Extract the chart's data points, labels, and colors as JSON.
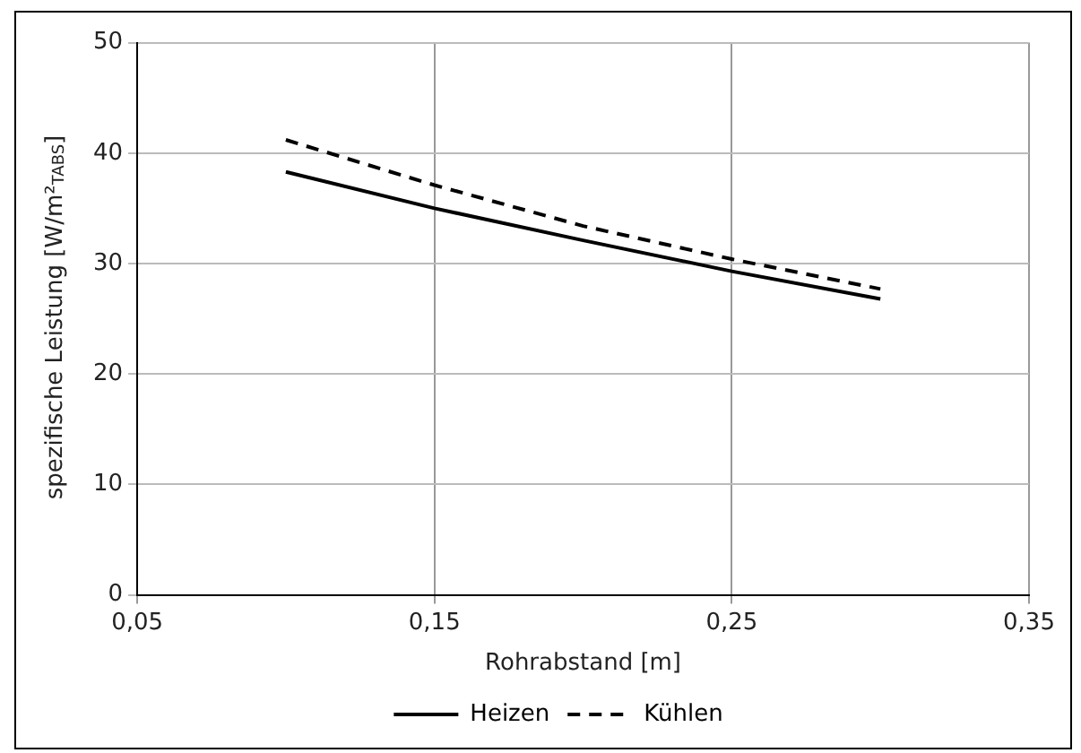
{
  "chart_data": {
    "type": "line",
    "xlabel": "Rohrabstand [m]",
    "ylabel": "spezifische Leistung [W/m²$_{TABS}$]",
    "x": [
      0.1,
      0.15,
      0.2,
      0.25,
      0.3
    ],
    "series": [
      {
        "name": "Heizen",
        "color": "#000000",
        "line_style": "solid",
        "values": [
          38.3,
          35.0,
          32.1,
          29.3,
          26.8
        ]
      },
      {
        "name": "Kühlen",
        "color": "#000000",
        "line_style": "dashed",
        "values": [
          41.2,
          37.1,
          33.4,
          30.4,
          27.7
        ]
      }
    ],
    "xlim": [
      0.05,
      0.35
    ],
    "xticks": [
      {
        "value": 0.05,
        "label": "0,05"
      },
      {
        "value": 0.15,
        "label": "0,15"
      },
      {
        "value": 0.25,
        "label": "0,25"
      },
      {
        "value": 0.35,
        "label": "0,35"
      }
    ],
    "ylim": [
      0,
      50
    ],
    "yticks": [
      0,
      10,
      20,
      30,
      40,
      50
    ],
    "grid": true,
    "legend": "bottom",
    "marker": "none"
  }
}
